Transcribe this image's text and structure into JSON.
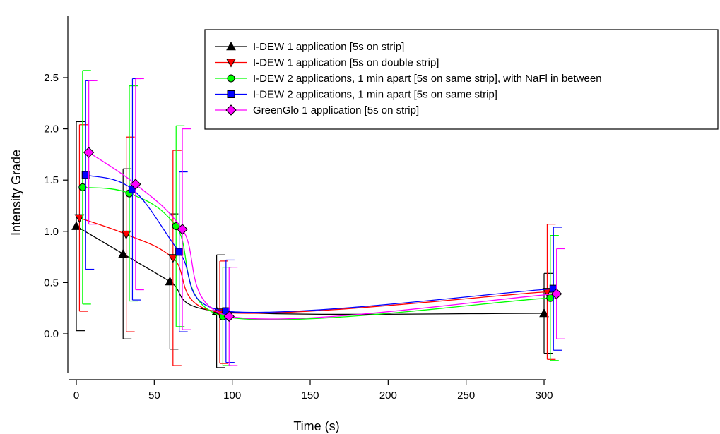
{
  "chart_data": {
    "type": "line",
    "title": "",
    "xlabel": "Time (s)",
    "ylabel": "Intensity Grade",
    "x_axis": {
      "break": true,
      "ticks": [
        0,
        50,
        100,
        150,
        200,
        250,
        300
      ],
      "tick_labels": [
        "0",
        "50",
        "100",
        "150",
        "200",
        "250",
        "300"
      ]
    },
    "y_axis": {
      "range": [
        -0.3,
        2.5
      ],
      "ticks": [
        0.0,
        0.5,
        1.0,
        1.5,
        2.0,
        2.5
      ],
      "tick_labels": [
        "0.0",
        "0.5",
        "1.0",
        "1.5",
        "2.0",
        "2.5"
      ]
    },
    "grid": false,
    "legend": {
      "position": "top-right",
      "frame": true
    },
    "series": [
      {
        "name": "I-DEW 1 application [5s on strip]",
        "color": "#000000",
        "marker": "triangle-up",
        "points": [
          {
            "x": 0,
            "y": 1.05,
            "err": 1.02
          },
          {
            "x": 30,
            "y": 0.78,
            "err": 0.83
          },
          {
            "x": 60,
            "y": 0.51,
            "err": 0.66
          },
          {
            "x": 90,
            "y": 0.22,
            "err": 0.55
          },
          {
            "x": 300,
            "y": 0.2,
            "err": 0.39
          }
        ]
      },
      {
        "name": "I-DEW 1 application [5s on double strip]",
        "color": "#ff0000",
        "marker": "triangle-down",
        "points": [
          {
            "x": 2,
            "y": 1.13,
            "err": 0.91
          },
          {
            "x": 32,
            "y": 0.97,
            "err": 0.95
          },
          {
            "x": 62,
            "y": 0.74,
            "err": 1.05
          },
          {
            "x": 92,
            "y": 0.21,
            "err": 0.5
          },
          {
            "x": 302,
            "y": 0.41,
            "err": 0.66
          }
        ]
      },
      {
        "name": "I-DEW 2 applications, 1 min apart [5s on same strip], with NaFl in between",
        "color": "#00ff00",
        "marker": "circle",
        "points": [
          {
            "x": 4,
            "y": 1.43,
            "err": 1.14
          },
          {
            "x": 34,
            "y": 1.37,
            "err": 1.05
          },
          {
            "x": 64,
            "y": 1.05,
            "err": 0.98
          },
          {
            "x": 94,
            "y": 0.17,
            "err": 0.48
          },
          {
            "x": 304,
            "y": 0.35,
            "err": 0.61
          }
        ]
      },
      {
        "name": "I-DEW 2 applications, 1 min apart [5s on same strip]",
        "color": "#0000ff",
        "marker": "square",
        "points": [
          {
            "x": 6,
            "y": 1.55,
            "err": 0.92
          },
          {
            "x": 36,
            "y": 1.41,
            "err": 1.08
          },
          {
            "x": 66,
            "y": 0.8,
            "err": 0.78
          },
          {
            "x": 96,
            "y": 0.22,
            "err": 0.5
          },
          {
            "x": 306,
            "y": 0.44,
            "err": 0.6
          }
        ]
      },
      {
        "name": "GreenGlo 1 application [5s on strip]",
        "color": "#ff00ff",
        "marker": "diamond",
        "points": [
          {
            "x": 8,
            "y": 1.77,
            "err": 0.7
          },
          {
            "x": 38,
            "y": 1.46,
            "err": 1.03
          },
          {
            "x": 68,
            "y": 1.02,
            "err": 0.98
          },
          {
            "x": 98,
            "y": 0.17,
            "err": 0.48
          },
          {
            "x": 308,
            "y": 0.39,
            "err": 0.44
          }
        ]
      }
    ]
  }
}
